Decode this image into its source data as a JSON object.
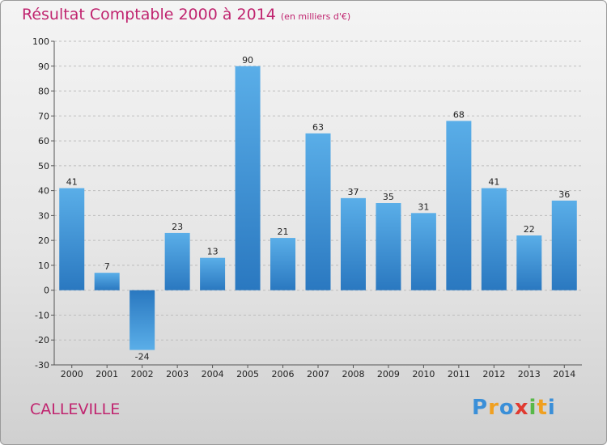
{
  "header": {
    "title": "Résultat Comptable 2000 à 2014",
    "subtitle": "(en milliers d'€)"
  },
  "footer": {
    "commune": "CALLEVILLE",
    "logo_letters": [
      {
        "char": "P",
        "color": "#3a8fd8"
      },
      {
        "char": "r",
        "color": "#f0a020"
      },
      {
        "char": "o",
        "color": "#3a8fd8"
      },
      {
        "char": "x",
        "color": "#e03a30"
      },
      {
        "char": "i",
        "color": "#58b848"
      },
      {
        "char": "t",
        "color": "#f0a020"
      },
      {
        "char": "i",
        "color": "#3a8fd8"
      }
    ]
  },
  "colors": {
    "title": "#c0246f",
    "bar_light": "#5aaee8",
    "bar_dark": "#2a78c0"
  },
  "chart_data": {
    "type": "bar",
    "title": "Résultat Comptable 2000 à 2014",
    "subtitle": "(en milliers d'€)",
    "xlabel": "",
    "ylabel": "",
    "categories": [
      "2000",
      "2001",
      "2002",
      "2003",
      "2004",
      "2005",
      "2006",
      "2007",
      "2008",
      "2009",
      "2010",
      "2011",
      "2012",
      "2013",
      "2014"
    ],
    "values": [
      41,
      7,
      -24,
      23,
      13,
      90,
      21,
      63,
      37,
      35,
      31,
      68,
      41,
      22,
      36
    ],
    "ylim": [
      -30,
      100
    ],
    "yticks": [
      100,
      90,
      80,
      70,
      60,
      50,
      40,
      30,
      20,
      10,
      0,
      -10,
      -20,
      -30
    ],
    "ytick_labels": [
      "100",
      "90",
      "80",
      "70",
      "60",
      "50",
      "40",
      "30",
      "20",
      "10",
      "0",
      "-10",
      "-20",
      "-30"
    ],
    "data_labels": [
      "41",
      "7",
      "-24",
      "23",
      "13",
      "90",
      "21",
      "63",
      "37",
      "35",
      "31",
      "68",
      "41",
      "22",
      "36"
    ],
    "grid": "horizontal-dashed",
    "legend": "none"
  }
}
